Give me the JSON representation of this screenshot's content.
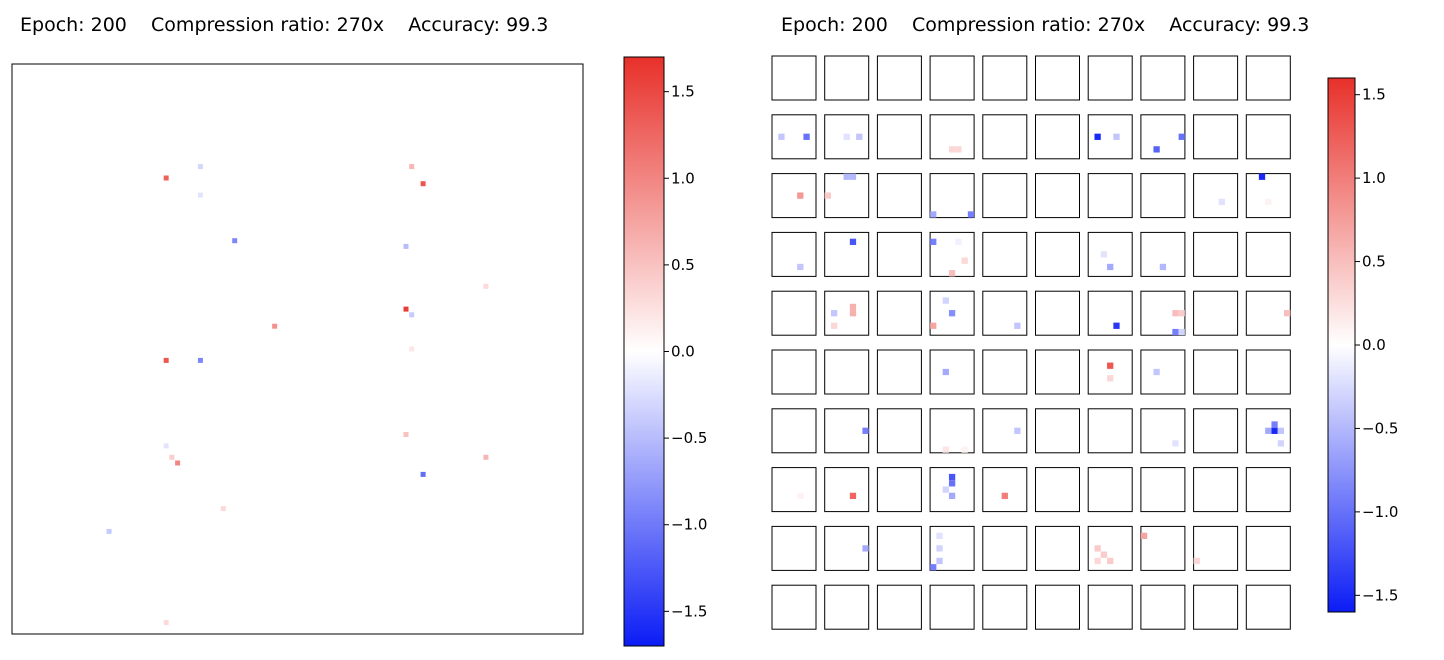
{
  "titles": {
    "left": "Epoch: 200    Compression ratio: 270x    Accuracy: 99.3",
    "right": "Epoch: 200    Compression ratio: 270x    Accuracy: 99.3"
  },
  "colors": {
    "positive": "#e8302a",
    "zero": "#ffffff",
    "negative": "#0b1cf5",
    "frame": "#000000"
  },
  "chart_data": [
    {
      "type": "heatmap",
      "description_key": "left",
      "grid": false,
      "colormap": "bwr",
      "colorbar": {
        "vmin": -1.7,
        "vmax": 1.7,
        "ticks": [
          -1.5,
          -1.0,
          -0.5,
          0.0,
          0.5,
          1.0,
          1.5
        ],
        "tick_labels": [
          "−1.5",
          "−1.0",
          "−0.5",
          "0.0",
          "0.5",
          "1.0",
          "1.5"
        ]
      },
      "cells": [
        {
          "x": 0.27,
          "y": 0.8,
          "v": 1.3
        },
        {
          "x": 0.27,
          "y": 0.48,
          "v": 1.4
        },
        {
          "x": 0.33,
          "y": 0.48,
          "v": -0.9
        },
        {
          "x": 0.33,
          "y": 0.82,
          "v": -0.3
        },
        {
          "x": 0.33,
          "y": 0.77,
          "v": -0.2
        },
        {
          "x": 0.39,
          "y": 0.69,
          "v": -0.9
        },
        {
          "x": 0.46,
          "y": 0.54,
          "v": 0.9
        },
        {
          "x": 0.7,
          "y": 0.82,
          "v": 0.6
        },
        {
          "x": 0.72,
          "y": 0.79,
          "v": 1.4
        },
        {
          "x": 0.69,
          "y": 0.68,
          "v": -0.5
        },
        {
          "x": 0.69,
          "y": 0.57,
          "v": 1.6
        },
        {
          "x": 0.7,
          "y": 0.56,
          "v": -0.4
        },
        {
          "x": 0.7,
          "y": 0.5,
          "v": 0.2
        },
        {
          "x": 0.83,
          "y": 0.61,
          "v": 0.3
        },
        {
          "x": 0.69,
          "y": 0.35,
          "v": 0.5
        },
        {
          "x": 0.72,
          "y": 0.28,
          "v": -1.1
        },
        {
          "x": 0.83,
          "y": 0.31,
          "v": 0.6
        },
        {
          "x": 0.29,
          "y": 0.3,
          "v": 1.0
        },
        {
          "x": 0.28,
          "y": 0.31,
          "v": 0.4
        },
        {
          "x": 0.27,
          "y": 0.33,
          "v": -0.2
        },
        {
          "x": 0.37,
          "y": 0.22,
          "v": 0.3
        },
        {
          "x": 0.17,
          "y": 0.18,
          "v": -0.4
        },
        {
          "x": 0.27,
          "y": 0.02,
          "v": 0.3
        }
      ]
    },
    {
      "type": "heatmap",
      "description_key": "right",
      "grid": false,
      "colormap": "bwr",
      "rows": 10,
      "cols": 10,
      "cell_resolution": 7,
      "colorbar": {
        "vmin": -1.6,
        "vmax": 1.6,
        "ticks": [
          -1.5,
          -1.0,
          -0.5,
          0.0,
          0.5,
          1.0,
          1.5
        ],
        "tick_labels": [
          "−1.5",
          "−1.0",
          "−0.5",
          "0.0",
          "0.5",
          "1.0",
          "1.5"
        ]
      },
      "cells": [
        {
          "r": 1,
          "c": 0,
          "px": 1,
          "py": 3,
          "v": -0.4
        },
        {
          "r": 1,
          "c": 0,
          "px": 5,
          "py": 3,
          "v": -1.0
        },
        {
          "r": 1,
          "c": 1,
          "px": 3,
          "py": 3,
          "v": -0.2
        },
        {
          "r": 1,
          "c": 1,
          "px": 5,
          "py": 3,
          "v": -0.4
        },
        {
          "r": 1,
          "c": 3,
          "px": 3,
          "py": 5,
          "v": 0.3
        },
        {
          "r": 1,
          "c": 3,
          "px": 4,
          "py": 5,
          "v": 0.3
        },
        {
          "r": 1,
          "c": 6,
          "px": 1,
          "py": 3,
          "v": -1.5
        },
        {
          "r": 1,
          "c": 6,
          "px": 4,
          "py": 3,
          "v": -0.4
        },
        {
          "r": 1,
          "c": 7,
          "px": 2,
          "py": 5,
          "v": -1.1
        },
        {
          "r": 1,
          "c": 7,
          "px": 6,
          "py": 3,
          "v": -1.0
        },
        {
          "r": 2,
          "c": 0,
          "px": 4,
          "py": 3,
          "v": 0.8
        },
        {
          "r": 2,
          "c": 1,
          "px": 0,
          "py": 3,
          "v": 0.4
        },
        {
          "r": 2,
          "c": 1,
          "px": 3,
          "py": 0,
          "v": -0.5
        },
        {
          "r": 2,
          "c": 1,
          "px": 4,
          "py": 0,
          "v": -0.5
        },
        {
          "r": 2,
          "c": 3,
          "px": 0,
          "py": 6,
          "v": -0.6
        },
        {
          "r": 2,
          "c": 3,
          "px": 6,
          "py": 6,
          "v": -0.9
        },
        {
          "r": 2,
          "c": 8,
          "px": 4,
          "py": 4,
          "v": -0.2
        },
        {
          "r": 2,
          "c": 9,
          "px": 2,
          "py": 0,
          "v": -1.5
        },
        {
          "r": 2,
          "c": 9,
          "px": 3,
          "py": 4,
          "v": 0.1
        },
        {
          "r": 3,
          "c": 0,
          "px": 4,
          "py": 5,
          "v": -0.4
        },
        {
          "r": 3,
          "c": 1,
          "px": 4,
          "py": 1,
          "v": -1.2
        },
        {
          "r": 3,
          "c": 3,
          "px": 0,
          "py": 1,
          "v": -0.9
        },
        {
          "r": 3,
          "c": 3,
          "px": 4,
          "py": 1,
          "v": -0.1
        },
        {
          "r": 3,
          "c": 3,
          "px": 5,
          "py": 4,
          "v": 0.3
        },
        {
          "r": 3,
          "c": 3,
          "px": 3,
          "py": 6,
          "v": 0.5
        },
        {
          "r": 3,
          "c": 6,
          "px": 2,
          "py": 3,
          "v": -0.2
        },
        {
          "r": 3,
          "c": 6,
          "px": 3,
          "py": 5,
          "v": -0.6
        },
        {
          "r": 3,
          "c": 7,
          "px": 3,
          "py": 5,
          "v": -0.5
        },
        {
          "r": 4,
          "c": 1,
          "px": 1,
          "py": 3,
          "v": -0.4
        },
        {
          "r": 4,
          "c": 1,
          "px": 4,
          "py": 2,
          "v": 0.6
        },
        {
          "r": 4,
          "c": 1,
          "px": 4,
          "py": 3,
          "v": 0.6
        },
        {
          "r": 4,
          "c": 1,
          "px": 1,
          "py": 5,
          "v": 0.3
        },
        {
          "r": 4,
          "c": 3,
          "px": 2,
          "py": 1,
          "v": -0.3
        },
        {
          "r": 4,
          "c": 3,
          "px": 3,
          "py": 3,
          "v": -0.8
        },
        {
          "r": 4,
          "c": 3,
          "px": 0,
          "py": 5,
          "v": 0.7
        },
        {
          "r": 4,
          "c": 4,
          "px": 5,
          "py": 5,
          "v": -0.4
        },
        {
          "r": 4,
          "c": 6,
          "px": 4,
          "py": 5,
          "v": -1.4
        },
        {
          "r": 4,
          "c": 7,
          "px": 5,
          "py": 3,
          "v": 0.5
        },
        {
          "r": 4,
          "c": 7,
          "px": 6,
          "py": 3,
          "v": 0.4
        },
        {
          "r": 4,
          "c": 7,
          "px": 5,
          "py": 6,
          "v": -0.9
        },
        {
          "r": 4,
          "c": 7,
          "px": 6,
          "py": 6,
          "v": -0.3
        },
        {
          "r": 4,
          "c": 9,
          "px": 6,
          "py": 3,
          "v": 0.5
        },
        {
          "r": 5,
          "c": 3,
          "px": 2,
          "py": 3,
          "v": -0.6
        },
        {
          "r": 5,
          "c": 6,
          "px": 3,
          "py": 2,
          "v": 1.3
        },
        {
          "r": 5,
          "c": 6,
          "px": 3,
          "py": 4,
          "v": 0.3
        },
        {
          "r": 5,
          "c": 7,
          "px": 2,
          "py": 3,
          "v": -0.4
        },
        {
          "r": 6,
          "c": 1,
          "px": 6,
          "py": 3,
          "v": -0.9
        },
        {
          "r": 6,
          "c": 3,
          "px": 2,
          "py": 6,
          "v": 0.2
        },
        {
          "r": 6,
          "c": 3,
          "px": 5,
          "py": 6,
          "v": 0.1
        },
        {
          "r": 6,
          "c": 4,
          "px": 5,
          "py": 3,
          "v": -0.4
        },
        {
          "r": 6,
          "c": 7,
          "px": 5,
          "py": 5,
          "v": -0.2
        },
        {
          "r": 6,
          "c": 9,
          "px": 4,
          "py": 3,
          "v": -1.5
        },
        {
          "r": 6,
          "c": 9,
          "px": 3,
          "py": 3,
          "v": -0.6
        },
        {
          "r": 6,
          "c": 9,
          "px": 5,
          "py": 3,
          "v": -0.4
        },
        {
          "r": 6,
          "c": 9,
          "px": 4,
          "py": 2,
          "v": -0.9
        },
        {
          "r": 6,
          "c": 9,
          "px": 5,
          "py": 5,
          "v": -0.3
        },
        {
          "r": 7,
          "c": 0,
          "px": 4,
          "py": 4,
          "v": 0.1
        },
        {
          "r": 7,
          "c": 1,
          "px": 4,
          "py": 4,
          "v": 1.2
        },
        {
          "r": 7,
          "c": 3,
          "px": 3,
          "py": 1,
          "v": -1.2
        },
        {
          "r": 7,
          "c": 3,
          "px": 3,
          "py": 2,
          "v": -1.0
        },
        {
          "r": 7,
          "c": 3,
          "px": 3,
          "py": 4,
          "v": -0.6
        },
        {
          "r": 7,
          "c": 3,
          "px": 2,
          "py": 3,
          "v": -0.3
        },
        {
          "r": 7,
          "c": 4,
          "px": 3,
          "py": 4,
          "v": 1.0
        },
        {
          "r": 8,
          "c": 1,
          "px": 6,
          "py": 3,
          "v": -0.6
        },
        {
          "r": 8,
          "c": 3,
          "px": 1,
          "py": 1,
          "v": -0.2
        },
        {
          "r": 8,
          "c": 3,
          "px": 1,
          "py": 3,
          "v": -0.3
        },
        {
          "r": 8,
          "c": 3,
          "px": 1,
          "py": 5,
          "v": -0.4
        },
        {
          "r": 8,
          "c": 3,
          "px": 0,
          "py": 6,
          "v": -0.9
        },
        {
          "r": 8,
          "c": 6,
          "px": 1,
          "py": 3,
          "v": 0.4
        },
        {
          "r": 8,
          "c": 6,
          "px": 2,
          "py": 4,
          "v": 0.4
        },
        {
          "r": 8,
          "c": 6,
          "px": 1,
          "py": 5,
          "v": 0.3
        },
        {
          "r": 8,
          "c": 6,
          "px": 3,
          "py": 5,
          "v": 0.4
        },
        {
          "r": 8,
          "c": 7,
          "px": 0,
          "py": 1,
          "v": 0.7
        },
        {
          "r": 8,
          "c": 8,
          "px": 0,
          "py": 5,
          "v": 0.3
        }
      ]
    }
  ]
}
